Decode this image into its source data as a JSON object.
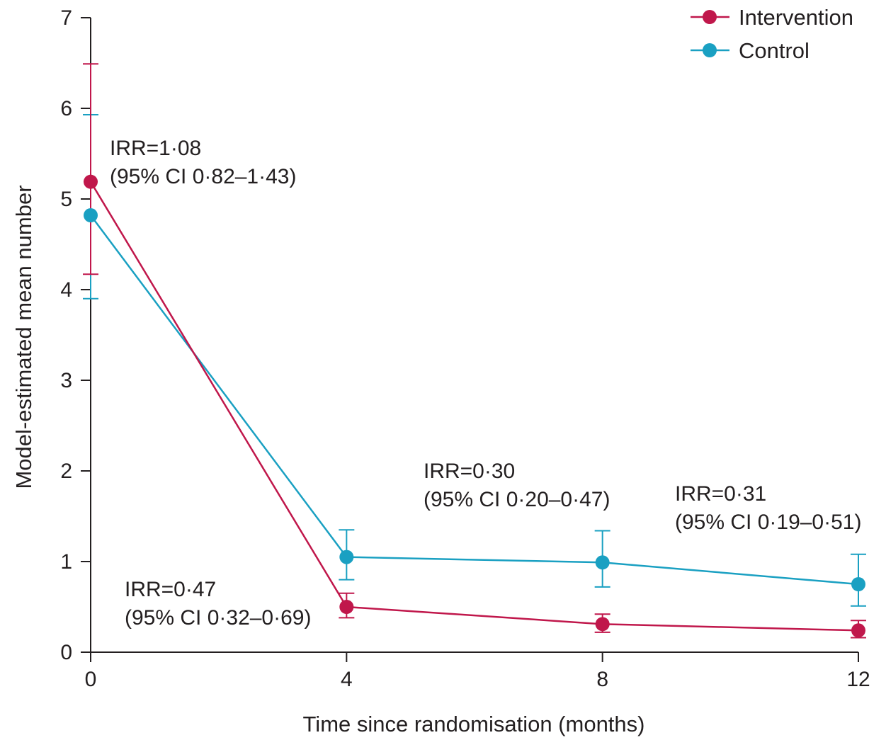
{
  "chart_data": {
    "type": "line",
    "title": "",
    "xlabel": "Time since randomisation (months)",
    "ylabel": "Model-estimated mean number",
    "xlim": [
      0,
      12
    ],
    "ylim": [
      0,
      7
    ],
    "x_ticks": [
      "0",
      "4",
      "8",
      "12"
    ],
    "y_ticks": [
      "0",
      "1",
      "2",
      "3",
      "4",
      "5",
      "6",
      "7"
    ],
    "x": [
      0,
      4,
      8,
      12
    ],
    "grid": false,
    "legend_position": "top-right",
    "series": [
      {
        "name": "Intervention",
        "color": "#c0174b",
        "values": [
          5.19,
          0.5,
          0.31,
          0.24
        ],
        "ci_low": [
          4.17,
          0.38,
          0.22,
          0.16
        ],
        "ci_high": [
          6.49,
          0.65,
          0.42,
          0.35
        ]
      },
      {
        "name": "Control",
        "color": "#1aa0c2",
        "values": [
          4.82,
          1.05,
          0.99,
          0.75
        ],
        "ci_low": [
          3.9,
          0.8,
          0.72,
          0.51
        ],
        "ci_high": [
          5.93,
          1.35,
          1.34,
          1.08
        ]
      }
    ],
    "annotations": [
      {
        "x": 0,
        "lines": [
          "IRR=1·08",
          "(95% CI 0·82–1·43)"
        ]
      },
      {
        "x": 4,
        "lines": [
          "IRR=0·47",
          "(95% CI 0·32–0·69)"
        ]
      },
      {
        "x": 8,
        "lines": [
          "IRR=0·30",
          "(95% CI 0·20–0·47)"
        ]
      },
      {
        "x": 12,
        "lines": [
          "IRR=0·31",
          "(95% CI 0·19–0·51)"
        ]
      }
    ]
  }
}
